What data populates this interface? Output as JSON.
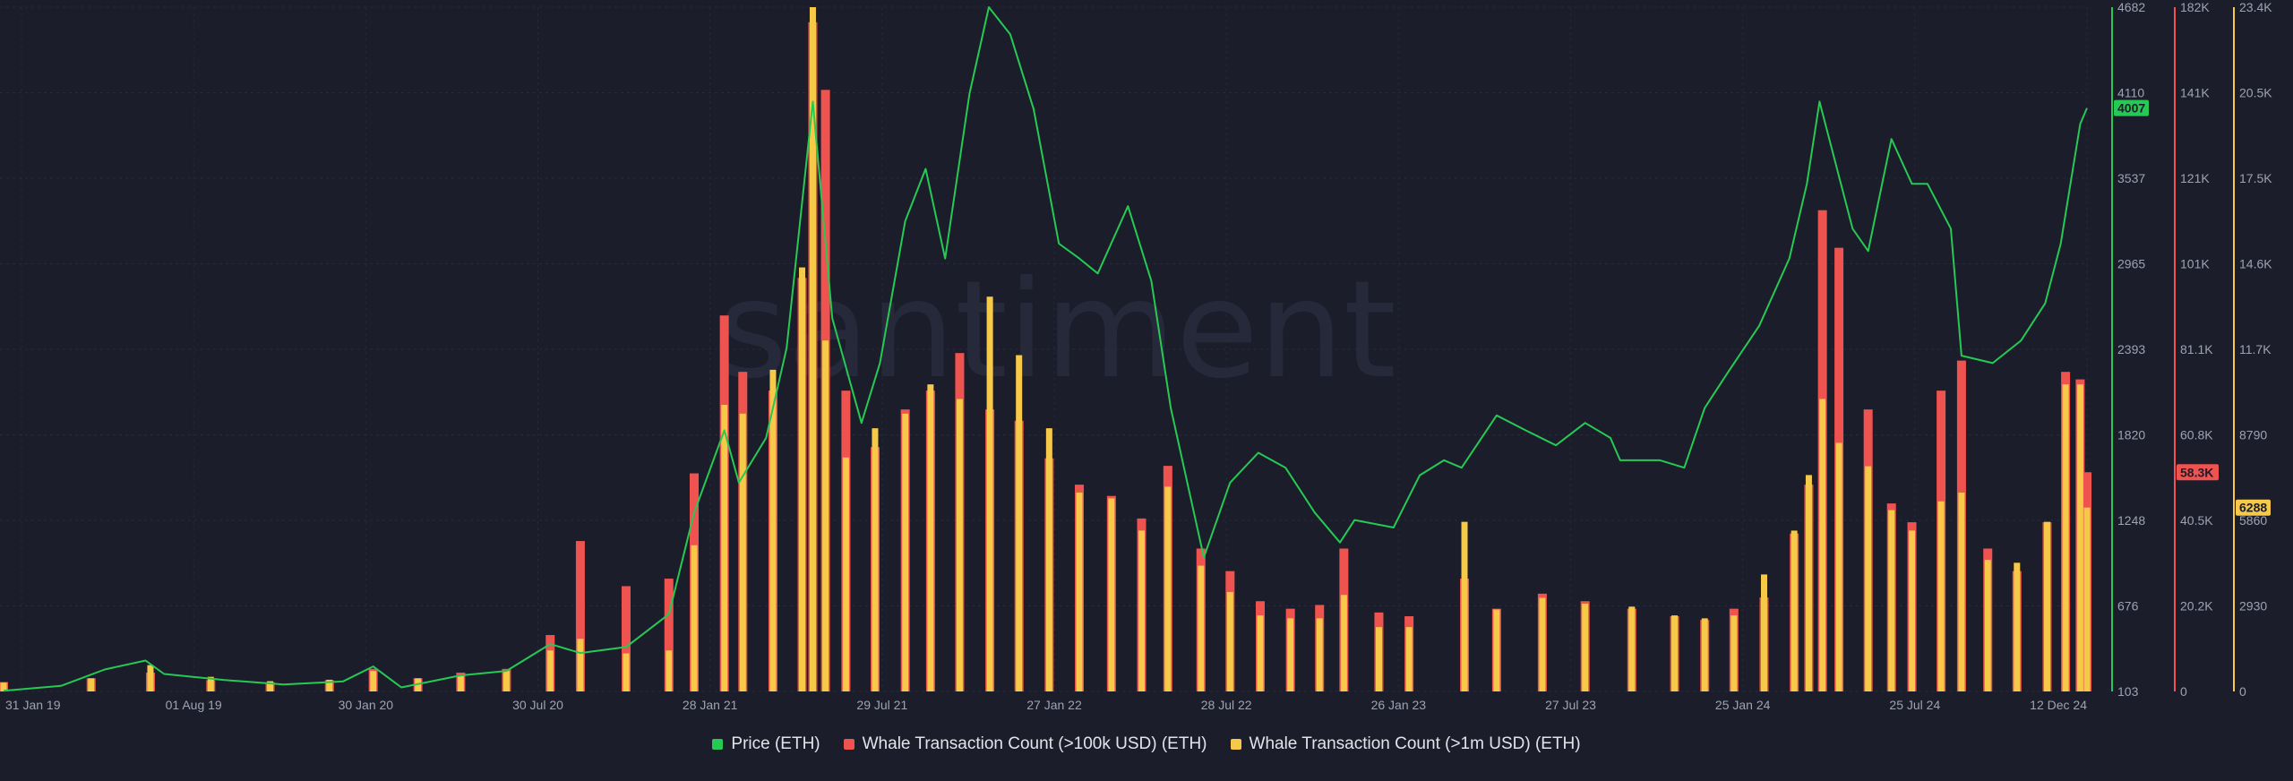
{
  "chart_data": {
    "type": "bar",
    "watermark": "santiment",
    "x_ticks": [
      "31 Jan 19",
      "01 Aug 19",
      "30 Jan 20",
      "30 Jul 20",
      "28 Jan 21",
      "29 Jul 21",
      "27 Jan 22",
      "28 Jul 22",
      "26 Jan 23",
      "27 Jul 23",
      "25 Jan 24",
      "25 Jul 24",
      "12 Dec 24"
    ],
    "x_range": [
      "2019-01-31",
      "2024-12-12"
    ],
    "axes": {
      "price": {
        "ticks": [
          "4682",
          "4110",
          "3537",
          "2965",
          "2393",
          "1820",
          "1248",
          "676",
          "103"
        ],
        "range": [
          103,
          4682
        ],
        "color": "#26c953"
      },
      "count_100k": {
        "ticks": [
          "182K",
          "141K",
          "121K",
          "101K",
          "81.1K",
          "60.8K",
          "40.5K",
          "20.2K",
          "0"
        ],
        "range": [
          0,
          182000
        ],
        "color": "#ef5350"
      },
      "count_1m": {
        "ticks": [
          "23.4K",
          "20.5K",
          "17.5K",
          "14.6K",
          "11.7K",
          "8790",
          "5860",
          "2930",
          "0"
        ],
        "range": [
          0,
          23400
        ],
        "color": "#f7c948"
      }
    },
    "current_labels": {
      "price": "4007",
      "count_100k": "58.3K",
      "count_1m": "6288"
    },
    "grid": true,
    "legend_placement": "bottom-center",
    "series": [
      {
        "name": "Price (ETH)",
        "type": "line",
        "axis": "price",
        "color": "#26c953",
        "x": [
          "2019-01-31",
          "2019-03-31",
          "2019-05-15",
          "2019-06-26",
          "2019-07-15",
          "2019-09-15",
          "2019-11-15",
          "2020-01-15",
          "2020-02-15",
          "2020-03-15",
          "2020-05-15",
          "2020-07-01",
          "2020-08-15",
          "2020-09-15",
          "2020-11-01",
          "2020-12-15",
          "2021-01-10",
          "2021-02-10",
          "2021-02-25",
          "2021-03-25",
          "2021-04-15",
          "2021-05-12",
          "2021-06-01",
          "2021-07-01",
          "2021-07-20",
          "2021-08-15",
          "2021-09-05",
          "2021-09-25",
          "2021-10-20",
          "2021-11-09",
          "2021-12-01",
          "2021-12-25",
          "2022-01-20",
          "2022-02-10",
          "2022-03-01",
          "2022-04-01",
          "2022-04-25",
          "2022-05-15",
          "2022-06-18",
          "2022-07-15",
          "2022-08-13",
          "2022-09-10",
          "2022-10-10",
          "2022-11-05",
          "2022-11-20",
          "2022-12-30",
          "2023-01-26",
          "2023-02-20",
          "2023-03-10",
          "2023-04-15",
          "2023-05-15",
          "2023-06-15",
          "2023-07-15",
          "2023-08-10",
          "2023-08-20",
          "2023-09-30",
          "2023-10-25",
          "2023-11-15",
          "2023-12-10",
          "2024-01-10",
          "2024-02-10",
          "2024-02-28",
          "2024-03-12",
          "2024-04-15",
          "2024-05-01",
          "2024-05-25",
          "2024-06-15",
          "2024-07-01",
          "2024-07-25",
          "2024-08-05",
          "2024-09-06",
          "2024-10-05",
          "2024-10-30",
          "2024-11-15",
          "2024-12-05",
          "2024-12-12"
        ],
        "values": [
          107,
          140,
          250,
          310,
          220,
          180,
          150,
          170,
          270,
          130,
          210,
          240,
          420,
          360,
          400,
          620,
          1300,
          1850,
          1500,
          1800,
          2400,
          4050,
          2600,
          1900,
          2300,
          3250,
          3600,
          3000,
          4100,
          4682,
          4500,
          4000,
          3100,
          3000,
          2900,
          3350,
          2850,
          2000,
          1000,
          1500,
          1700,
          1600,
          1300,
          1100,
          1250,
          1200,
          1550,
          1650,
          1600,
          1950,
          1850,
          1750,
          1900,
          1800,
          1650,
          1650,
          1600,
          2000,
          2250,
          2550,
          3000,
          3500,
          4050,
          3200,
          3050,
          3800,
          3500,
          3500,
          3200,
          2350,
          2300,
          2450,
          2700,
          3100,
          3900,
          4007
        ]
      },
      {
        "name": "Whale Transaction Count (>100k USD) (ETH)",
        "type": "bar",
        "axis": "count_100k",
        "color": "#ef5350",
        "x": [
          "2019-01-31",
          "2019-05-01",
          "2019-07-01",
          "2019-09-01",
          "2019-11-01",
          "2020-01-01",
          "2020-02-15",
          "2020-04-01",
          "2020-05-15",
          "2020-07-01",
          "2020-08-15",
          "2020-09-15",
          "2020-11-01",
          "2020-12-15",
          "2021-01-10",
          "2021-02-10",
          "2021-03-01",
          "2021-04-01",
          "2021-05-01",
          "2021-05-12",
          "2021-05-25",
          "2021-06-15",
          "2021-07-15",
          "2021-08-15",
          "2021-09-10",
          "2021-10-10",
          "2021-11-10",
          "2021-12-10",
          "2022-01-10",
          "2022-02-10",
          "2022-03-15",
          "2022-04-15",
          "2022-05-12",
          "2022-06-15",
          "2022-07-15",
          "2022-08-15",
          "2022-09-15",
          "2022-10-15",
          "2022-11-09",
          "2022-12-15",
          "2023-01-15",
          "2023-03-13",
          "2023-04-15",
          "2023-06-01",
          "2023-07-15",
          "2023-09-01",
          "2023-10-15",
          "2023-11-15",
          "2023-12-15",
          "2024-01-15",
          "2024-02-15",
          "2024-03-01",
          "2024-03-15",
          "2024-04-01",
          "2024-05-01",
          "2024-05-25",
          "2024-06-15",
          "2024-07-15",
          "2024-08-05",
          "2024-09-01",
          "2024-10-01",
          "2024-11-01",
          "2024-11-20",
          "2024-12-05",
          "2024-12-12"
        ],
        "values": [
          2500,
          3500,
          5000,
          3000,
          2500,
          3000,
          6000,
          3500,
          5000,
          6000,
          15000,
          40000,
          28000,
          30000,
          58000,
          100000,
          85000,
          80000,
          110000,
          178000,
          160000,
          80000,
          65000,
          75000,
          80000,
          90000,
          75000,
          72000,
          62000,
          55000,
          52000,
          46000,
          60000,
          38000,
          32000,
          24000,
          22000,
          23000,
          38000,
          21000,
          20000,
          30000,
          22000,
          26000,
          24000,
          22000,
          20000,
          19000,
          22000,
          25000,
          42000,
          55000,
          128000,
          118000,
          75000,
          50000,
          45000,
          80000,
          88000,
          38000,
          32000,
          45000,
          85000,
          83000,
          58300
        ]
      },
      {
        "name": "Whale Transaction Count (>1m USD) (ETH)",
        "type": "bar",
        "axis": "count_1m",
        "color": "#f7c948",
        "x": [
          "2019-01-31",
          "2019-05-01",
          "2019-07-01",
          "2019-09-01",
          "2019-11-01",
          "2020-01-01",
          "2020-02-15",
          "2020-04-01",
          "2020-05-15",
          "2020-07-01",
          "2020-08-15",
          "2020-09-15",
          "2020-11-01",
          "2020-12-15",
          "2021-01-10",
          "2021-02-10",
          "2021-03-01",
          "2021-04-01",
          "2021-05-01",
          "2021-05-12",
          "2021-05-25",
          "2021-06-15",
          "2021-07-15",
          "2021-08-15",
          "2021-09-10",
          "2021-10-10",
          "2021-11-10",
          "2021-12-10",
          "2022-01-10",
          "2022-02-10",
          "2022-03-15",
          "2022-04-15",
          "2022-05-12",
          "2022-06-15",
          "2022-07-15",
          "2022-08-15",
          "2022-09-15",
          "2022-10-15",
          "2022-11-09",
          "2022-12-15",
          "2023-01-15",
          "2023-03-13",
          "2023-04-15",
          "2023-06-01",
          "2023-07-15",
          "2023-09-01",
          "2023-10-15",
          "2023-11-15",
          "2023-12-15",
          "2024-01-15",
          "2024-02-15",
          "2024-03-01",
          "2024-03-15",
          "2024-04-01",
          "2024-05-01",
          "2024-05-25",
          "2024-06-15",
          "2024-07-15",
          "2024-08-05",
          "2024-09-01",
          "2024-10-01",
          "2024-11-01",
          "2024-11-20",
          "2024-12-05",
          "2024-12-12"
        ],
        "values": [
          300,
          450,
          900,
          500,
          350,
          400,
          700,
          450,
          550,
          700,
          1400,
          1800,
          1300,
          1400,
          5000,
          9800,
          9500,
          11000,
          14500,
          23400,
          12000,
          8000,
          9000,
          9500,
          10500,
          10000,
          13500,
          11500,
          9000,
          6800,
          6600,
          5500,
          7000,
          4300,
          3400,
          2600,
          2500,
          2500,
          3300,
          2200,
          2200,
          5800,
          2800,
          3200,
          3000,
          2900,
          2600,
          2500,
          2600,
          4000,
          5500,
          7400,
          10000,
          8500,
          7700,
          6200,
          5500,
          6500,
          6800,
          4500,
          4400,
          5800,
          10500,
          10500,
          6288
        ]
      }
    ]
  }
}
